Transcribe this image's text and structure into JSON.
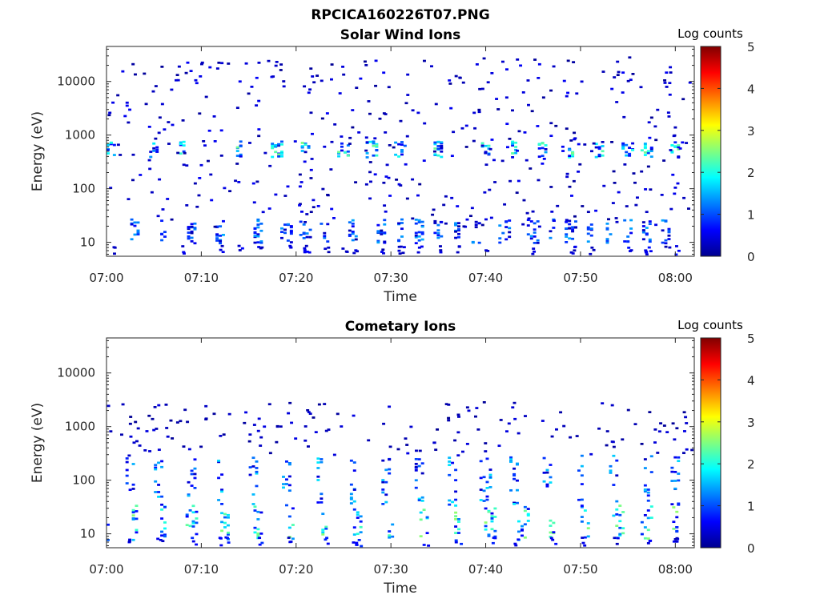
{
  "figure_title": "RPCICA160226T07.PNG",
  "chart_data": [
    {
      "type": "heatmap",
      "title": "Solar Wind Ions",
      "xlabel": "Time",
      "ylabel": "Energy (eV)",
      "x_range": [
        "07:00",
        "08:02"
      ],
      "x_ticks": [
        "07:00",
        "07:10",
        "07:20",
        "07:30",
        "07:40",
        "07:50",
        "08:00"
      ],
      "y_scale": "log",
      "y_range": [
        5.5,
        45000
      ],
      "y_ticks": [
        10,
        100,
        1000,
        10000
      ],
      "y_tick_labels": [
        "10",
        "100",
        "1000",
        "10000"
      ],
      "colorbar": {
        "label": "Log counts",
        "range": [
          0,
          5
        ],
        "ticks": [
          "0",
          "1",
          "2",
          "3",
          "4",
          "5"
        ],
        "colormap": "jet"
      },
      "features": [
        {
          "energy_band": [
            10,
            28
          ],
          "minutes": [
            3,
            6,
            9,
            12,
            16,
            19,
            21,
            23,
            26,
            29,
            31,
            33,
            35,
            37,
            39,
            42,
            45,
            47,
            49,
            51,
            53,
            55,
            57,
            59
          ],
          "log_counts": [
            0.2,
            1.5
          ]
        },
        {
          "energy_band": [
            400,
            800
          ],
          "minutes": [
            0.5,
            5,
            8,
            14,
            18,
            21,
            25,
            28,
            31,
            35,
            40,
            43,
            46,
            49,
            52,
            55,
            57,
            60
          ],
          "log_counts": [
            0.3,
            2.5
          ]
        },
        {
          "energy_band": [
            20,
            30000
          ],
          "scattered": true,
          "log_counts": [
            0.1,
            0.6
          ]
        }
      ]
    },
    {
      "type": "heatmap",
      "title": "Cometary Ions",
      "xlabel": "Time",
      "ylabel": "Energy (eV)",
      "x_range": [
        "07:00",
        "08:02"
      ],
      "x_ticks": [
        "07:00",
        "07:10",
        "07:20",
        "07:30",
        "07:40",
        "07:50",
        "08:00"
      ],
      "y_scale": "log",
      "y_range": [
        5.5,
        45000
      ],
      "y_ticks": [
        10,
        100,
        1000,
        10000
      ],
      "y_tick_labels": [
        "10",
        "100",
        "1000",
        "10000"
      ],
      "colorbar": {
        "label": "Log counts",
        "range": [
          0,
          5
        ],
        "ticks": [
          "0",
          "1",
          "2",
          "3",
          "4",
          "5"
        ],
        "colormap": "jet"
      },
      "features": [
        {
          "energy_band": [
            8,
            35
          ],
          "minutes": [
            0,
            3,
            6,
            9,
            12.5,
            16,
            19.5,
            23,
            26.5,
            30,
            33.5,
            37,
            40.5,
            44,
            47,
            50.5,
            54,
            57,
            60
          ],
          "log_counts": [
            0.5,
            2.6
          ]
        },
        {
          "energy_band": [
            35,
            300
          ],
          "minutes": [
            2.5,
            5.5,
            9,
            12,
            15.5,
            19,
            22.5,
            26,
            29.5,
            33,
            36.5,
            40,
            43,
            46.5,
            50,
            53.5,
            57,
            60
          ],
          "log_counts": [
            0.3,
            1.8
          ]
        },
        {
          "energy_band": [
            300,
            3000
          ],
          "scattered": true,
          "log_counts": [
            0.1,
            0.5
          ]
        }
      ]
    }
  ]
}
